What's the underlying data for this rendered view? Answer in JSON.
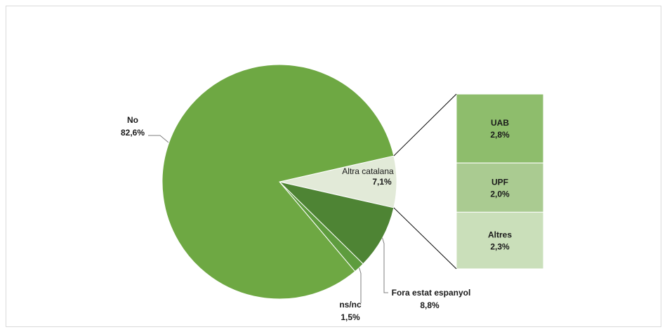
{
  "chart_data": {
    "type": "bar-of-pie",
    "title": "",
    "pie": {
      "slices": [
        {
          "name": "Altra catalana",
          "value": 7.1,
          "value_label": "7,1%",
          "color": "#e2ead8"
        },
        {
          "name": "Fora estat espanyol",
          "value": 8.8,
          "value_label": "8,8%",
          "color": "#4e8434"
        },
        {
          "name": "ns/nc",
          "value": 1.5,
          "value_label": "1,5%",
          "color": "#5e9c3e"
        },
        {
          "name": "No",
          "value": 82.6,
          "value_label": "82,6%",
          "color": "#6ea843"
        }
      ]
    },
    "bar": {
      "parent": "Altra catalana",
      "segments": [
        {
          "name": "UAB",
          "value": 2.8,
          "value_label": "2,8%",
          "color": "#8ebd6c"
        },
        {
          "name": "UPF",
          "value": 2.0,
          "value_label": "2,0%",
          "color": "#aacb91"
        },
        {
          "name": "Altres",
          "value": 2.3,
          "value_label": "2,3%",
          "color": "#cadfba"
        }
      ]
    }
  }
}
